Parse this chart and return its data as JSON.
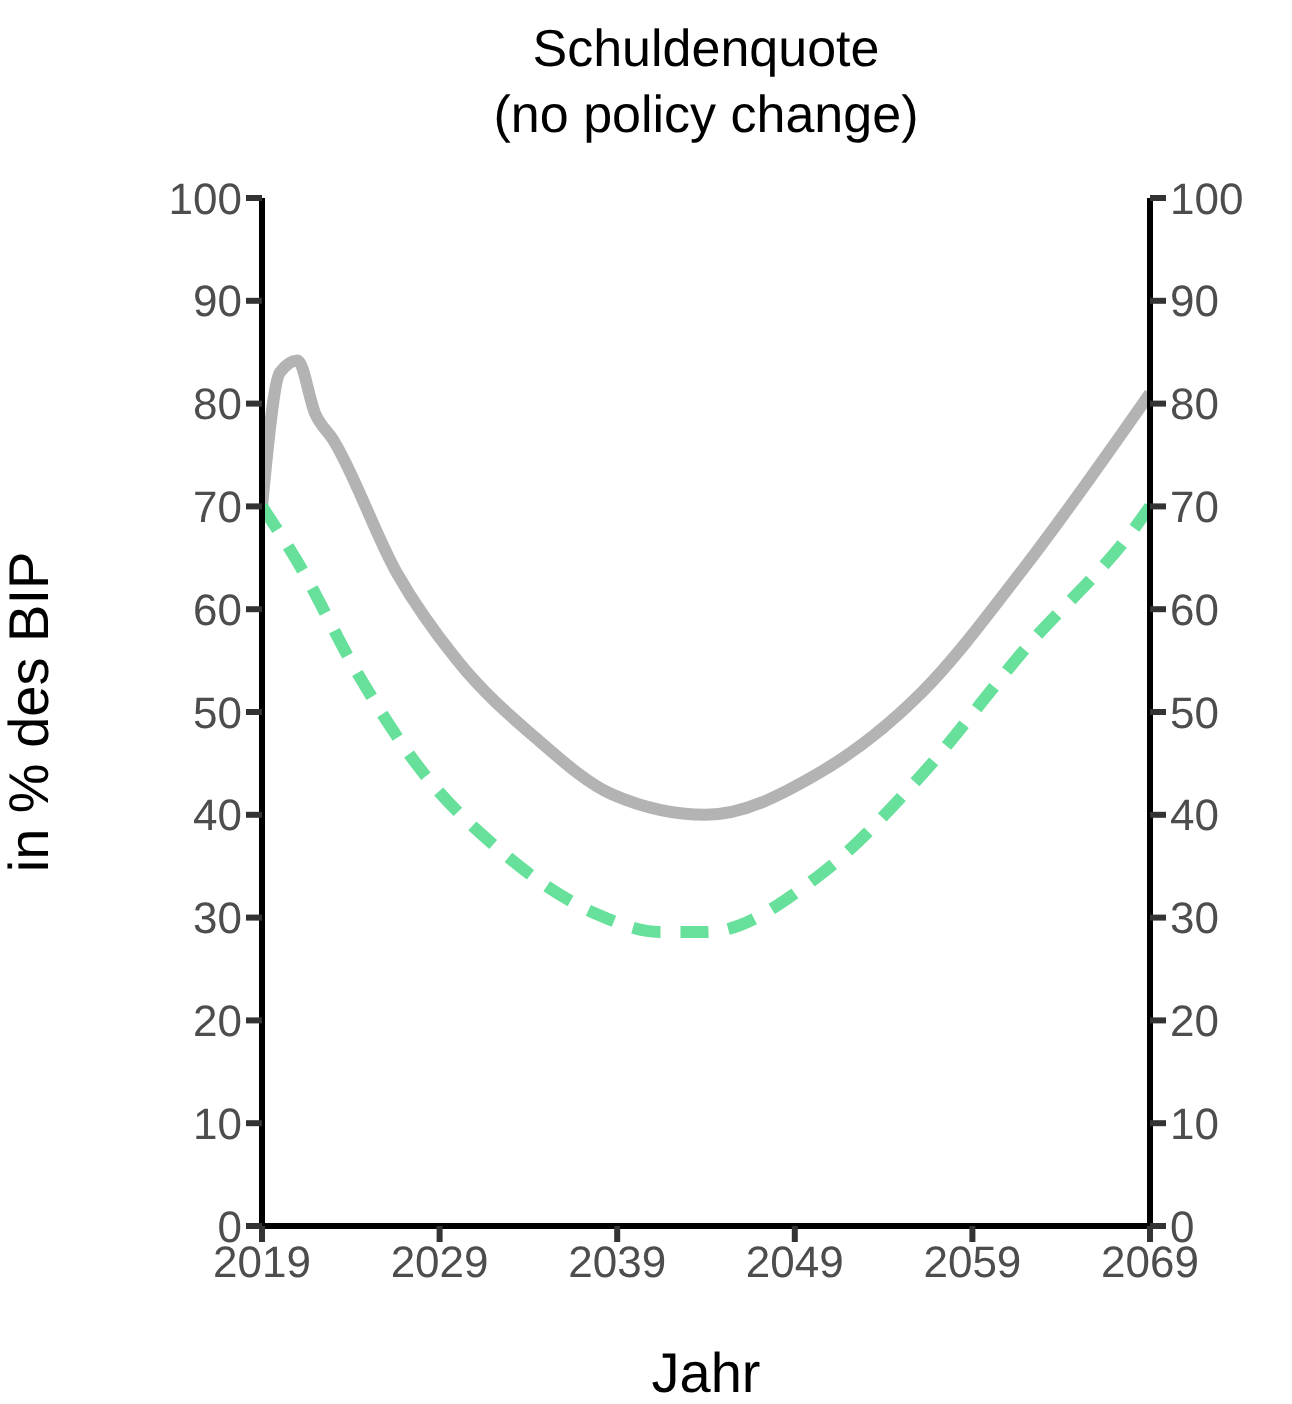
{
  "chart_data": {
    "type": "line",
    "title": "Schuldenquote\n(no policy change)",
    "xlabel": "Jahr",
    "ylabel": "in % des BIP",
    "xlim": [
      2019,
      2069
    ],
    "xticks": [
      2019,
      2029,
      2039,
      2049,
      2059,
      2069
    ],
    "ylim": [
      0,
      100
    ],
    "yticks": [
      0,
      10,
      20,
      30,
      40,
      50,
      60,
      70,
      80,
      90,
      100
    ],
    "y2lim": [
      0,
      100
    ],
    "y2ticks": [
      0,
      10,
      20,
      30,
      40,
      50,
      60,
      70,
      80,
      90,
      100
    ],
    "marker": "none",
    "series": [
      {
        "color": "#b3b3b3",
        "line_style": "solid",
        "x": [
          2019,
          2020,
          2021,
          2022,
          2023,
          2026.6,
          2030,
          2034.4,
          2038.7,
          2044,
          2050.3,
          2056.2,
          2061.9,
          2069
        ],
        "values": [
          70,
          83,
          84.2,
          79,
          76.5,
          63.5,
          55,
          47.5,
          42,
          40,
          44,
          52,
          64,
          81
        ]
      },
      {
        "color": "#66e09a",
        "line_style": "dashed",
        "x": [
          2019,
          2021,
          2024.3,
          2027.8,
          2032.5,
          2037.9,
          2041.4,
          2044,
          2050.3,
          2056.2,
          2061.9,
          2068.3,
          2069
        ],
        "values": [
          70,
          64.6,
          54,
          44.7,
          36.4,
          30.3,
          28.6,
          28.6,
          34,
          44,
          56,
          68.3,
          70
        ]
      }
    ]
  }
}
